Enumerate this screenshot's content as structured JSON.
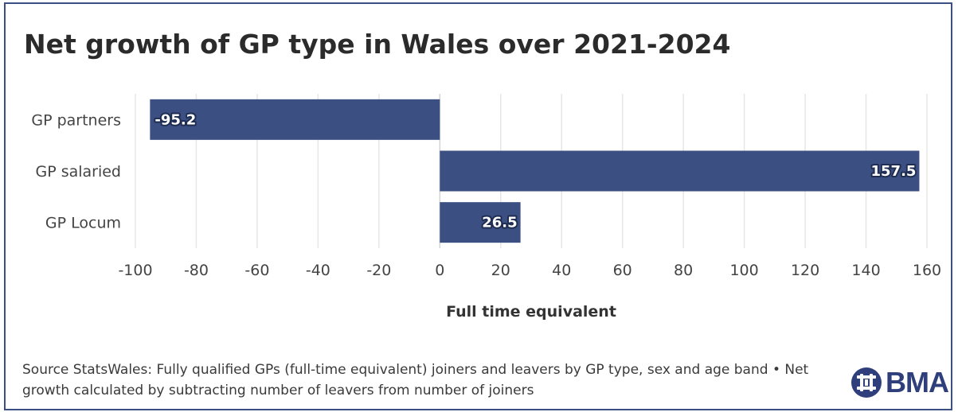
{
  "title": "Net growth of GP type in Wales over 2021-2024",
  "source_text": "Source StatsWales: Fully qualified GPs (full-time equivalent) joiners and leavers by GP type, sex and age band • Net growth calculated by subtracting number of leavers from number of joiners",
  "logo": {
    "text": "BMA",
    "icon": "bma-emblem-icon",
    "color": "#2e3f7c"
  },
  "colors": {
    "bar": "#3b4f82",
    "frame": "#3b4f82",
    "grid": "#e6e6e6"
  },
  "chart_data": {
    "type": "bar",
    "orientation": "horizontal",
    "categories": [
      "GP partners",
      "GP salaried",
      "GP Locum"
    ],
    "values": [
      -95.2,
      157.5,
      26.5
    ],
    "value_labels": [
      "-95.2",
      "157.5",
      "26.5"
    ],
    "title": "Net growth of GP type in Wales over 2021-2024",
    "xlabel": "Full time equivalent",
    "ylabel": "",
    "xlim": [
      -100,
      160
    ],
    "xticks": [
      -100,
      -80,
      -60,
      -40,
      -20,
      0,
      20,
      40,
      60,
      80,
      100,
      120,
      140,
      160
    ],
    "grid": true,
    "legend": "none"
  }
}
